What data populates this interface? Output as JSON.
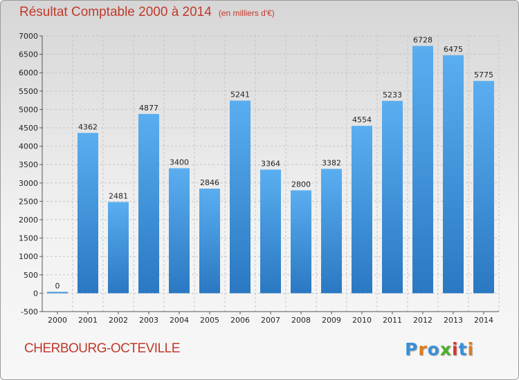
{
  "header": {
    "title": "Résultat Comptable 2000 à 2014",
    "unit": "(en milliers d'€)"
  },
  "footer": {
    "city": "CHERBOURG-OCTEVILLE",
    "logo_letters": [
      "P",
      "r",
      "o",
      "x",
      "i",
      "t",
      "i"
    ],
    "logo_colors": [
      "#3a8fd8",
      "#e07b1a",
      "#3a8fd8",
      "#4caf2a",
      "#e03030",
      "#3a8fd8",
      "#e07b1a"
    ]
  },
  "colors": {
    "accent": "#c0392b",
    "bar": "#4a9ee0",
    "bar_dark": "#2a78c2"
  },
  "chart_data": {
    "type": "bar",
    "title": "Résultat Comptable 2000 à 2014",
    "subtitle": "(en milliers d'€)",
    "categories": [
      "2000",
      "2001",
      "2002",
      "2003",
      "2004",
      "2005",
      "2006",
      "2007",
      "2008",
      "2009",
      "2010",
      "2011",
      "2012",
      "2013",
      "2014"
    ],
    "values": [
      0,
      4362,
      2481,
      4877,
      3400,
      2846,
      5241,
      3364,
      2800,
      3382,
      4554,
      5233,
      6728,
      6475,
      5775
    ],
    "ylim": [
      -500,
      7000
    ],
    "yticks": [
      -500,
      0,
      500,
      1000,
      1500,
      2000,
      2500,
      3000,
      3500,
      4000,
      4500,
      5000,
      5500,
      6000,
      6500,
      7000
    ],
    "grid": true
  }
}
